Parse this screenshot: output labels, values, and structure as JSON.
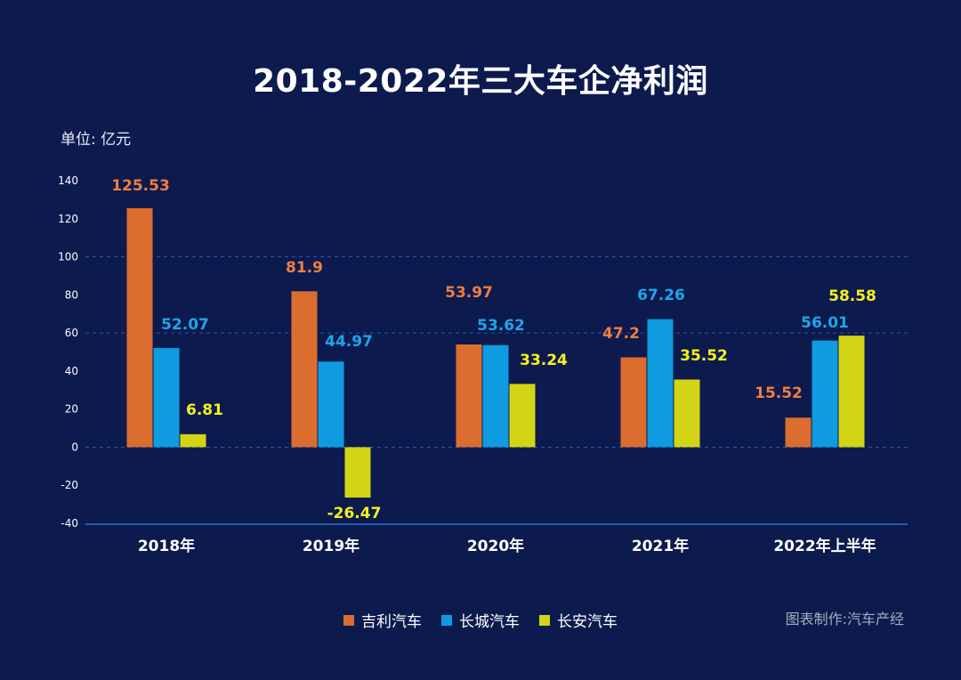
{
  "title": "2018-2022年三大车企净利润",
  "unit_label": "单位: 亿元",
  "credit": "图表制作:汽车产经",
  "chart_data": {
    "type": "bar",
    "title": "2018-2022年三大车企净利润",
    "ylabel": "单位: 亿元",
    "xlabel": "",
    "categories": [
      "2018年",
      "2019年",
      "2020年",
      "2021年",
      "2022年上半年"
    ],
    "ylim": [
      -40,
      140
    ],
    "yticks": [
      140,
      120,
      100,
      80,
      60,
      40,
      20,
      0,
      -20,
      -40
    ],
    "grid_lines": [
      100,
      60,
      0
    ],
    "legend_position": "bottom",
    "series": [
      {
        "name": "吉利汽车",
        "color": "#db6d2e",
        "label_color": "#ef7f3f",
        "values": [
          125.53,
          81.9,
          53.97,
          47.2,
          15.52
        ],
        "labels": [
          "125.53",
          "81.9",
          "53.97",
          "47.2",
          "15.52"
        ]
      },
      {
        "name": "长城汽车",
        "color": "#0f9be0",
        "label_color": "#1ea6ea",
        "values": [
          52.07,
          44.97,
          53.62,
          67.26,
          56.01
        ],
        "labels": [
          "52.07",
          "44.97",
          "53.62",
          "67.26",
          "56.01"
        ]
      },
      {
        "name": "长安汽车",
        "color": "#d4d416",
        "label_color": "#f3f21d",
        "values": [
          6.81,
          -26.47,
          33.24,
          35.52,
          58.58
        ],
        "labels": [
          "6.81",
          "-26.47",
          "33.24",
          "35.52",
          "58.58"
        ]
      }
    ]
  }
}
